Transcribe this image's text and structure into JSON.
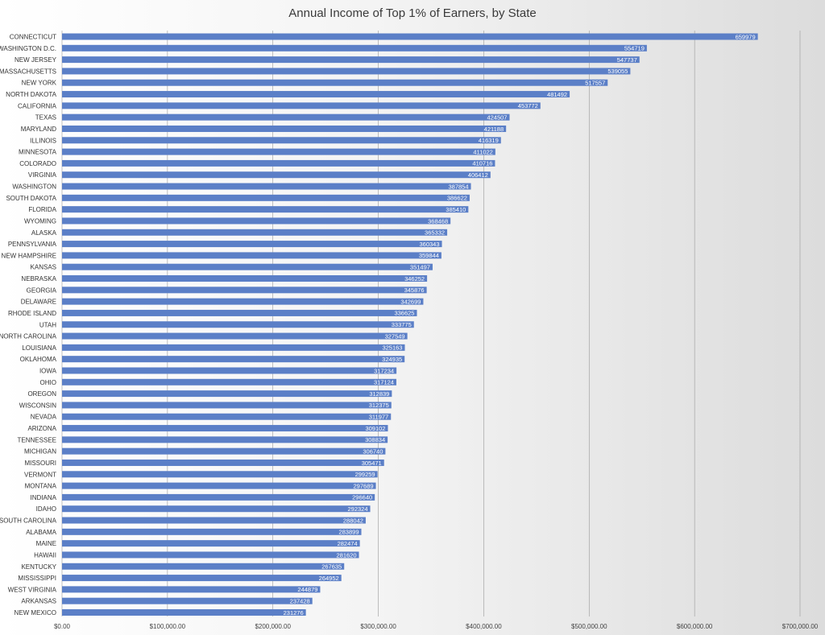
{
  "chart_data": {
    "type": "bar",
    "orientation": "horizontal",
    "title": "Annual Income of Top 1% of Earners, by State",
    "xlabel": "",
    "ylabel": "",
    "xlim": [
      0,
      700000
    ],
    "x_ticks": [
      0,
      100000,
      200000,
      300000,
      400000,
      500000,
      600000,
      700000
    ],
    "x_tick_labels": [
      "$0.00",
      "$100,000.00",
      "$200,000.00",
      "$300,000.00",
      "$400,000.00",
      "$500,000.00",
      "$600,000.00",
      "$700,000.00"
    ],
    "grid": "vertical",
    "bar_color": "#5b7fc7",
    "categories": [
      "CONNECTICUT",
      "WASHINGTON D.C.",
      "NEW JERSEY",
      "MASSACHUSETTS",
      "NEW YORK",
      "NORTH DAKOTA",
      "CALIFORNIA",
      "TEXAS",
      "MARYLAND",
      "ILLINOIS",
      "MINNESOTA",
      "COLORADO",
      "VIRGINIA",
      "WASHINGTON",
      "SOUTH DAKOTA",
      "FLORIDA",
      "WYOMING",
      "ALASKA",
      "PENNSYLVANIA",
      "NEW HAMPSHIRE",
      "KANSAS",
      "NEBRASKA",
      "GEORGIA",
      "DELAWARE",
      "RHODE ISLAND",
      "UTAH",
      "NORTH CAROLINA",
      "LOUISIANA",
      "OKLAHOMA",
      "IOWA",
      "OHIO",
      "OREGON",
      "WISCONSIN",
      "NEVADA",
      "ARIZONA",
      "TENNESSEE",
      "MICHIGAN",
      "MISSOURI",
      "VERMONT",
      "MONTANA",
      "INDIANA",
      "IDAHO",
      "SOUTH CAROLINA",
      "ALABAMA",
      "MAINE",
      "HAWAII",
      "KENTUCKY",
      "MISSISSIPPI",
      "WEST VIRGINIA",
      "ARKANSAS",
      "NEW MEXICO"
    ],
    "values": [
      659979,
      554719,
      547737,
      539055,
      517557,
      481492,
      453772,
      424507,
      421188,
      416319,
      411022,
      410716,
      406412,
      387854,
      386622,
      385410,
      368468,
      365332,
      360343,
      359844,
      351497,
      346252,
      345876,
      342699,
      336625,
      333775,
      327549,
      325163,
      324935,
      317234,
      317124,
      312839,
      312375,
      311977,
      309102,
      308834,
      306740,
      305471,
      299259,
      297689,
      296640,
      292324,
      288042,
      283899,
      282474,
      281620,
      267635,
      264952,
      244879,
      237428,
      231276
    ]
  }
}
